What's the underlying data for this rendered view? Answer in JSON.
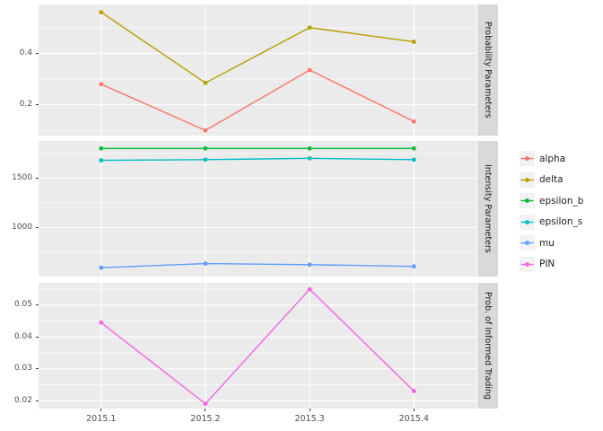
{
  "chart_data": {
    "type": "line",
    "title": "",
    "xlabel": "",
    "ylabel": "",
    "categories": [
      "2015.1",
      "2015.2",
      "2015.3",
      "2015.4"
    ],
    "facets_layout": "three stacked panels sharing x axis, facet strips on right, legend right",
    "panels": [
      {
        "strip_label": "Probability Parameters",
        "ylim": [
          0.08,
          0.59
        ],
        "major_ticks": [
          0.4,
          0.2
        ],
        "tick_labels": [
          "0.4",
          "0.2"
        ],
        "minor_ticks": [
          0.5,
          0.3,
          0.1
        ],
        "series": [
          {
            "name": "alpha",
            "color": "#F8766D",
            "values": [
              0.28,
              0.1,
              0.335,
              0.135
            ]
          },
          {
            "name": "delta",
            "color": "#B79F00",
            "values": [
              0.56,
              0.285,
              0.5,
              0.445
            ]
          }
        ]
      },
      {
        "strip_label": "Intensity Parameters",
        "ylim": [
          505,
          1875
        ],
        "major_ticks": [
          1500,
          1000
        ],
        "tick_labels": [
          "1500",
          "1000"
        ],
        "minor_ticks": [
          1750,
          1250,
          750
        ],
        "series": [
          {
            "name": "epsilon_b",
            "color": "#00BA38",
            "values": [
              1800,
              1800,
              1800,
              1800
            ]
          },
          {
            "name": "epsilon_s",
            "color": "#00BFC4",
            "values": [
              1680,
              1686,
              1700,
              1686
            ]
          },
          {
            "name": "mu",
            "color": "#619CFF",
            "values": [
              595,
              636,
              625,
              608
            ]
          }
        ]
      },
      {
        "strip_label": "Prob. of Informed Trading",
        "ylim": [
          0.0175,
          0.057
        ],
        "major_ticks": [
          0.05,
          0.04,
          0.03,
          0.02
        ],
        "tick_labels": [
          "0.05",
          "0.04",
          "0.03",
          "0.02"
        ],
        "minor_ticks": [
          0.055,
          0.045,
          0.035,
          0.025
        ],
        "series": [
          {
            "name": "PIN",
            "color": "#F564E3",
            "values": [
              0.0445,
              0.019,
              0.055,
              0.023
            ]
          }
        ]
      }
    ],
    "legend": {
      "position": "right",
      "items": [
        {
          "label": "alpha",
          "color": "#F8766D"
        },
        {
          "label": "delta",
          "color": "#B79F00"
        },
        {
          "label": "epsilon_b",
          "color": "#00BA38"
        },
        {
          "label": "epsilon_s",
          "color": "#00BFC4"
        },
        {
          "label": "mu",
          "color": "#619CFF"
        },
        {
          "label": "PIN",
          "color": "#F564E3"
        }
      ]
    },
    "theme": {
      "panel_background": "#EBEBEB",
      "gridline_color": "#FFFFFF",
      "strip_background": "#D9D9D9",
      "axis_text_color": "#4D4D4D",
      "tick_mark_color": "#333333",
      "legend_key_background": "#F2F2F2",
      "grid": "on"
    }
  }
}
